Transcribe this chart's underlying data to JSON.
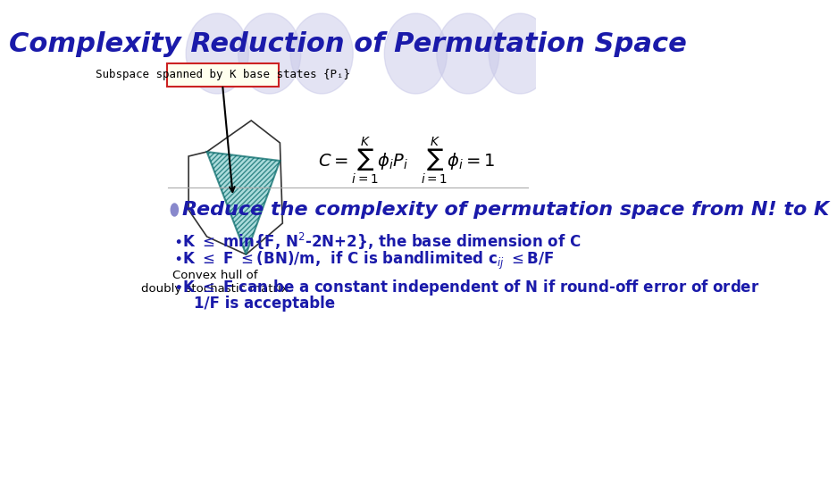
{
  "title": "Complexity Reduction of Permutation Space",
  "title_color": "#1a1aaa",
  "title_fontsize": 22,
  "bg_color": "#ffffff",
  "bg_ellipse_color": "#c8c8e8",
  "subspace_label": "Subspace spanned by K base states {Pᵢ}",
  "subspace_box_color": "#cc2222",
  "subspace_box_fill": "#ffffee",
  "convex_label": "Convex hull of\ndoubly stochastic matrix",
  "bullet_text": "Reduce the complexity of permutation space from N! to K",
  "bullet_color": "#1a1aaa",
  "bullet_dot_color": "#8888cc",
  "bullet_fontsize": 16,
  "sub_bullets": [
    "•K ≤ min{F, N²-2N+2}, the base dimension of C",
    "•K ≤ F ≤(BN)/m,  if C is bandlimited cᵢⱼ ≤B/F",
    "•K ≤ F can be a constant independent of N if round-off error of order\n        1/F is acceptable"
  ],
  "sub_bullet_color": "#1a1aaa",
  "sub_bullet_fontsize": 12,
  "formula_color": "#000000"
}
